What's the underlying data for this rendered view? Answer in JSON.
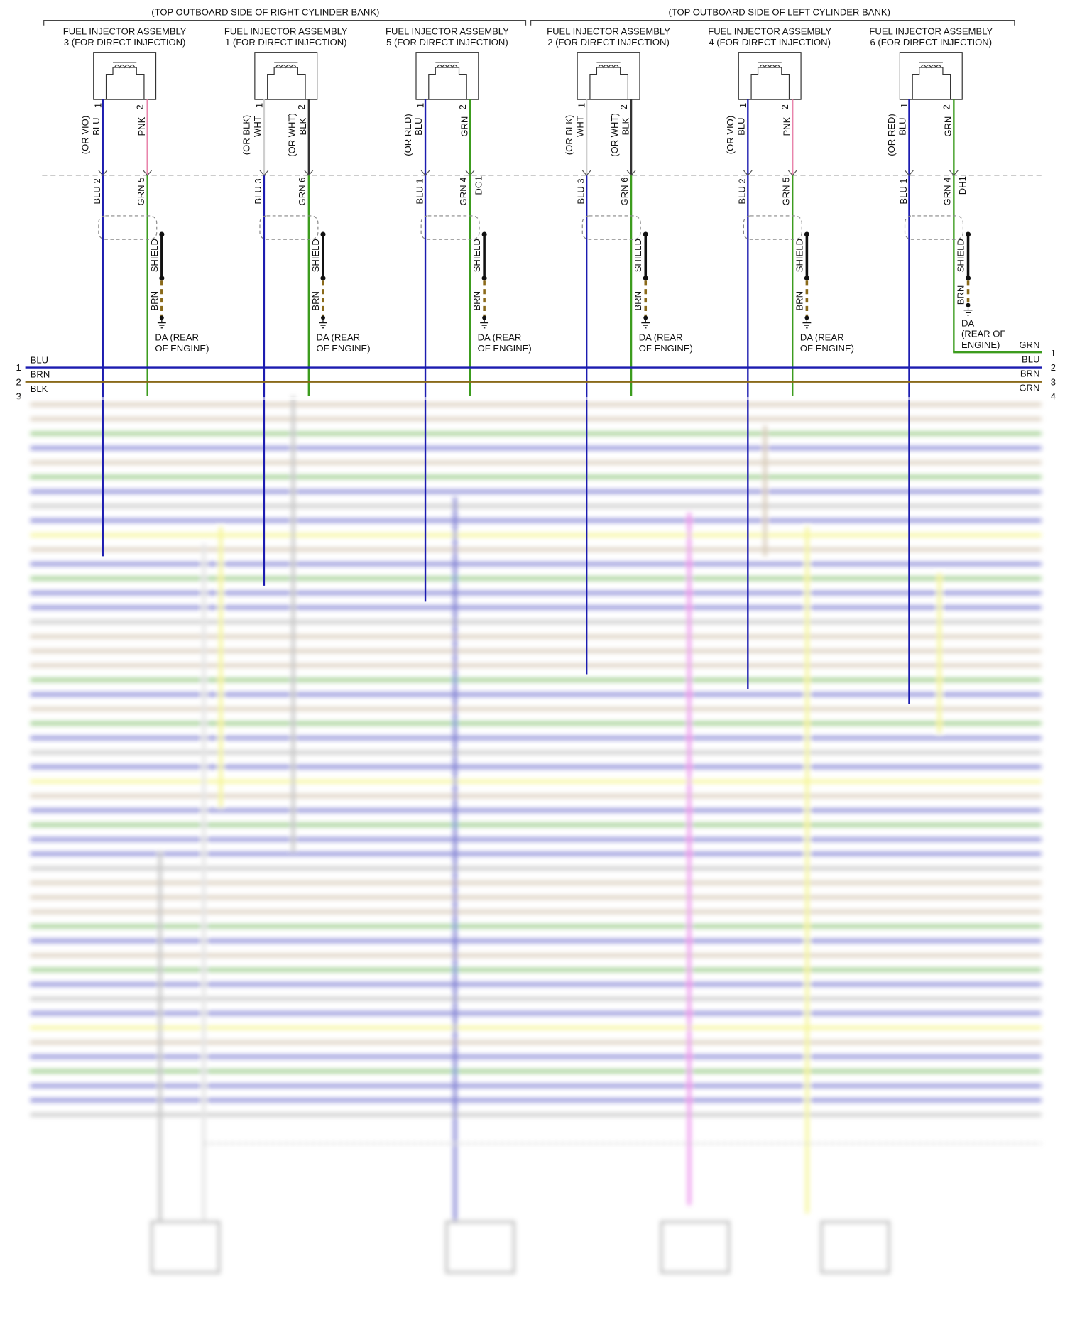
{
  "header": {
    "right_bank": "(TOP OUTBOARD SIDE OF RIGHT CYLINDER BANK)",
    "left_bank": "(TOP OUTBOARD SIDE OF LEFT CYLINDER BANK)"
  },
  "injectors": [
    {
      "label": [
        "FUEL INJECTOR ASSEMBLY",
        "3 (FOR DIRECT INJECTION)"
      ],
      "pins": [
        "1",
        "2"
      ],
      "wire_left": [
        "(OR VIO)",
        "BLU"
      ],
      "wire_right": [
        "PNK"
      ],
      "conn_left": "BLU 2",
      "conn_right": "GRN 5",
      "shield": "SHIELD",
      "drain": "BRN",
      "ground": [
        "DA (REAR",
        "OF ENGINE)"
      ]
    },
    {
      "label": [
        "FUEL INJECTOR ASSEMBLY",
        "1 (FOR DIRECT INJECTION)"
      ],
      "pins": [
        "1",
        "2"
      ],
      "wire_left": [
        "(OR BLK)",
        "WHT"
      ],
      "wire_right": [
        "(OR WHT)",
        "BLK"
      ],
      "conn_left": "BLU 3",
      "conn_right": "GRN 6",
      "shield": "SHIELD",
      "drain": "BRN",
      "ground": [
        "DA (REAR",
        "OF ENGINE)"
      ]
    },
    {
      "label": [
        "FUEL INJECTOR ASSEMBLY",
        "5 (FOR DIRECT INJECTION)"
      ],
      "pins": [
        "1",
        "2"
      ],
      "wire_left": [
        "(OR RED)",
        "BLU"
      ],
      "wire_right": [
        "GRN"
      ],
      "conn_left": "BLU 1",
      "conn_right": "GRN 4",
      "connector": "DG1",
      "shield": "SHIELD",
      "drain": "BRN",
      "ground": [
        "DA (REAR",
        "OF ENGINE)"
      ]
    },
    {
      "label": [
        "FUEL INJECTOR ASSEMBLY",
        "2 (FOR DIRECT INJECTION)"
      ],
      "pins": [
        "1",
        "2"
      ],
      "wire_left": [
        "(OR BLK)",
        "WHT"
      ],
      "wire_right": [
        "(OR WHT)",
        "BLK"
      ],
      "conn_left": "BLU 3",
      "conn_right": "GRN 6",
      "shield": "SHIELD",
      "drain": "BRN",
      "ground": [
        "DA (REAR",
        "OF ENGINE)"
      ]
    },
    {
      "label": [
        "FUEL INJECTOR ASSEMBLY",
        "4 (FOR DIRECT INJECTION)"
      ],
      "pins": [
        "1",
        "2"
      ],
      "wire_left": [
        "(OR VIO)",
        "BLU"
      ],
      "wire_right": [
        "PNK"
      ],
      "conn_left": "BLU 2",
      "conn_right": "GRN 5",
      "shield": "SHIELD",
      "drain": "BRN",
      "ground": [
        "DA (REAR",
        "OF ENGINE)"
      ]
    },
    {
      "label": [
        "FUEL INJECTOR ASSEMBLY",
        "6 (FOR DIRECT INJECTION)"
      ],
      "pins": [
        "1",
        "2"
      ],
      "wire_left": [
        "(OR RED)",
        "BLU"
      ],
      "wire_right": [
        "GRN"
      ],
      "conn_left": "BLU 1",
      "conn_right": "GRN 4",
      "connector": "DH1",
      "shield": "SHIELD",
      "drain": "BRN",
      "ground": [
        "DA",
        "(REAR OF",
        "ENGINE)"
      ]
    }
  ],
  "bus": {
    "left": [
      {
        "pin": "1",
        "wire": "BLU"
      },
      {
        "pin": "2",
        "wire": "BRN"
      },
      {
        "pin": "3",
        "wire": "BLK"
      }
    ],
    "right": [
      {
        "pin": "1",
        "wire": "GRN"
      },
      {
        "pin": "2",
        "wire": "BLU"
      },
      {
        "pin": "3",
        "wire": "BRN"
      },
      {
        "pin": "4",
        "wire": "GRN"
      }
    ]
  }
}
